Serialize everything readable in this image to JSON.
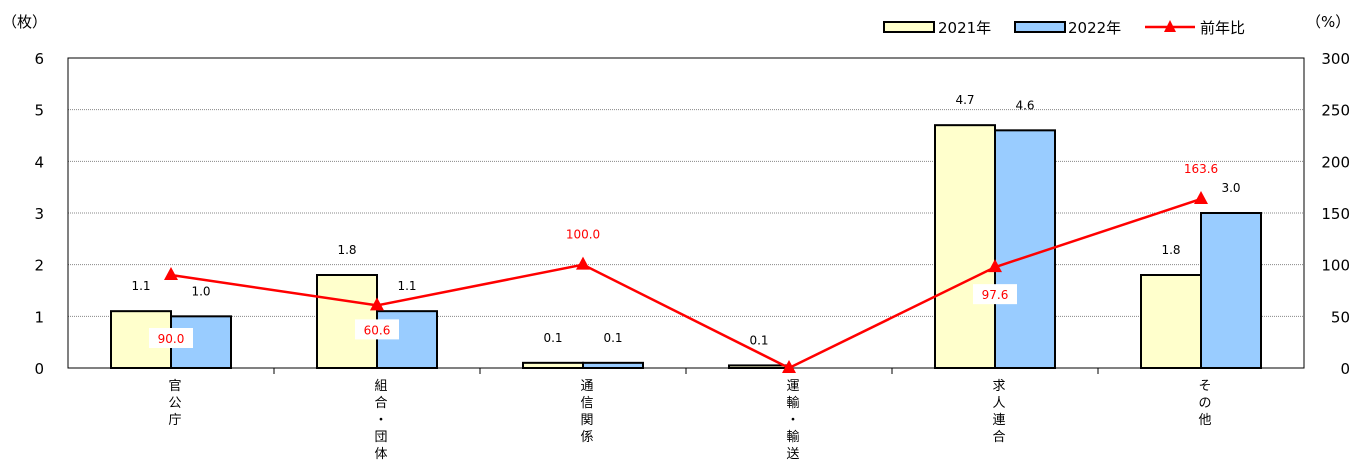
{
  "chart_data": {
    "type": "bar",
    "categories": [
      [
        "官",
        "公",
        "庁"
      ],
      [
        "組",
        "合",
        "・",
        "団",
        "体"
      ],
      [
        "通",
        "信",
        "関",
        "係"
      ],
      [
        "運",
        "輸",
        "・",
        "輸",
        "送"
      ],
      [
        "求",
        "人",
        "連",
        "合"
      ],
      [
        "そ",
        "の",
        "他"
      ]
    ],
    "series": [
      {
        "name": "2021年",
        "values": [
          1.1,
          1.8,
          0.1,
          0.05,
          4.7,
          1.8
        ],
        "labels": [
          "1.1",
          "1.8",
          "0.1",
          "0.1",
          "4.7",
          "1.8"
        ],
        "color": "#FFFFCC"
      },
      {
        "name": "2022年",
        "values": [
          1.0,
          1.1,
          0.1,
          0.0,
          4.6,
          3.0
        ],
        "labels": [
          "1.0",
          "1.1",
          "0.1",
          "",
          "4.6",
          "3.0"
        ],
        "color": "#99CCFF"
      }
    ],
    "line_series": {
      "name": "前年比",
      "values": [
        90.0,
        60.6,
        100.0,
        0.0,
        97.6,
        163.6
      ],
      "labels": [
        "90.0",
        "60.6",
        "100.0",
        "",
        "97.6",
        "163.6"
      ],
      "color": "#FF0000"
    },
    "y_left": {
      "label": "（枚）",
      "min": 0,
      "max": 6,
      "ticks": [
        0,
        1,
        2,
        3,
        4,
        5,
        6
      ]
    },
    "y_right": {
      "label": "（%）",
      "min": 0,
      "max": 300,
      "ticks": [
        0,
        50,
        100,
        150,
        200,
        250,
        300
      ]
    },
    "grid": true,
    "legend_position": "top-right"
  }
}
